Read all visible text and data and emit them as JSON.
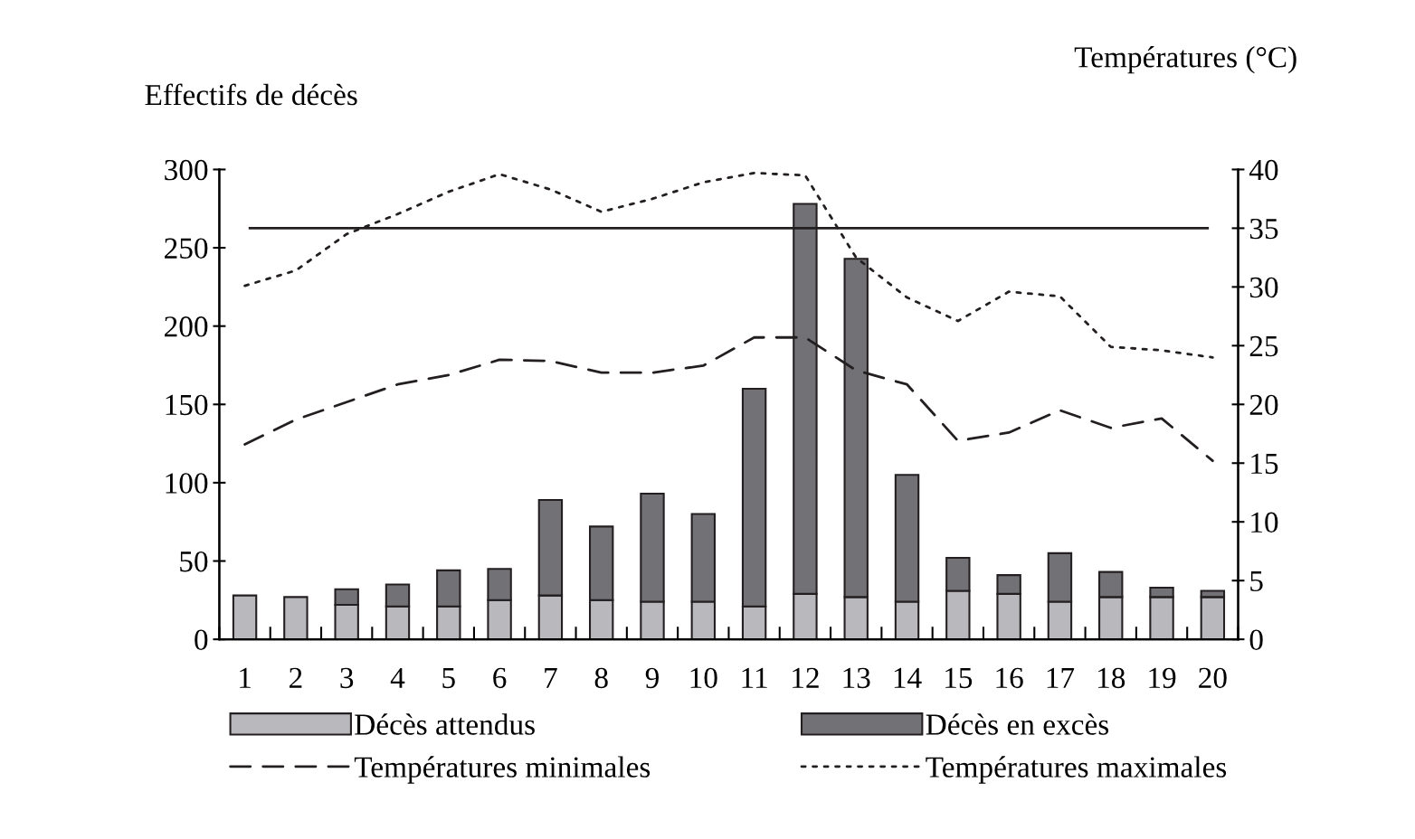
{
  "chart_data": {
    "type": "bar",
    "stacked": true,
    "ylabel": "Effectifs de décès",
    "y2label": "Températures (°C)",
    "categories": [
      "1",
      "2",
      "3",
      "4",
      "5",
      "6",
      "7",
      "8",
      "9",
      "10",
      "11",
      "12",
      "13",
      "14",
      "15",
      "16",
      "17",
      "18",
      "19",
      "20"
    ],
    "ylim": [
      0,
      300
    ],
    "yticks": [
      0,
      50,
      100,
      150,
      200,
      250,
      300
    ],
    "y2lim": [
      0,
      40
    ],
    "y2ticks": [
      0,
      5,
      10,
      15,
      20,
      25,
      30,
      35,
      40
    ],
    "grid": false,
    "legend": "bottom",
    "series": [
      {
        "name": "Décès attendus",
        "color": "#b9b9bd",
        "values": [
          28,
          27,
          22,
          21,
          21,
          25,
          28,
          25,
          24,
          24,
          21,
          29,
          27,
          24,
          31,
          29,
          24,
          27,
          27,
          27
        ]
      },
      {
        "name": "Décès en excès",
        "color": "#727276",
        "values": [
          null,
          null,
          10,
          14,
          23,
          20,
          61,
          47,
          69,
          56,
          139,
          249,
          216,
          81,
          21,
          12,
          31,
          16,
          6,
          4
        ]
      },
      {
        "name": "Températures minimales",
        "type": "line",
        "axis": "y2",
        "color": "#231f20",
        "line_style": "dashed",
        "values": [
          16.6,
          18.7,
          20.2,
          21.7,
          22.5,
          23.8,
          23.7,
          22.7,
          22.7,
          23.3,
          25.7,
          25.7,
          22.9,
          21.7,
          16.9,
          17.6,
          19.5,
          18.0,
          18.8,
          15.2
        ]
      },
      {
        "name": "Températures maximales",
        "type": "line",
        "axis": "y2",
        "color": "#231f20",
        "line_style": "dotted",
        "values": [
          30.1,
          31.4,
          34.5,
          36.2,
          38.1,
          39.6,
          38.3,
          36.4,
          37.5,
          38.9,
          39.7,
          39.5,
          32.5,
          29.1,
          27.1,
          29.6,
          29.2,
          24.9,
          24.6,
          24.0
        ]
      }
    ],
    "ref_lines": [
      {
        "axis": "y2",
        "value": 35,
        "color": "#231f20",
        "line_style": "solid"
      }
    ]
  }
}
